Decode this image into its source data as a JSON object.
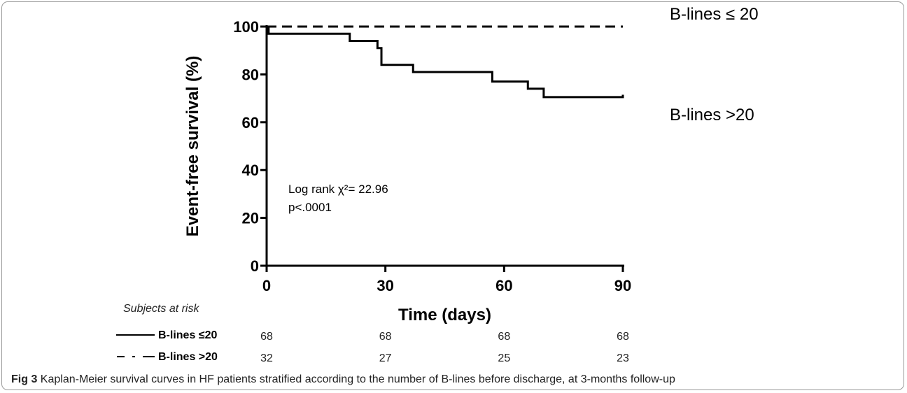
{
  "chart_data": {
    "type": "line",
    "subtype": "kaplan-meier",
    "xlabel": "Time (days)",
    "ylabel": "Event-free survival (%)",
    "xlim": [
      0,
      90
    ],
    "ylim": [
      0,
      100
    ],
    "xticks": [
      0,
      30,
      60,
      90
    ],
    "yticks": [
      0,
      20,
      40,
      60,
      80,
      100
    ],
    "grid": false,
    "series": [
      {
        "name": "B-lines ≤ 20",
        "style": "dashed",
        "x": [
          0,
          90
        ],
        "y": [
          100,
          100
        ]
      },
      {
        "name": "B-lines >20",
        "style": "solid",
        "x": [
          0,
          0.5,
          21,
          28,
          29,
          37,
          57,
          66,
          70,
          90
        ],
        "y": [
          100,
          97,
          94,
          91,
          84,
          81,
          77,
          74,
          70.5,
          71.5
        ]
      }
    ],
    "annotation": {
      "line1": "Log rank χ²= 22.96",
      "line2": "p<.0001"
    },
    "at_risk": {
      "title": "Subjects at risk",
      "times": [
        0,
        30,
        60,
        90
      ],
      "rows": [
        {
          "label": "B-lines ≤20",
          "counts": [
            "68",
            "68",
            "68",
            "68"
          ]
        },
        {
          "label": "B-lines >20",
          "counts": [
            "32",
            "27",
            "25",
            "23"
          ]
        }
      ]
    }
  },
  "caption": {
    "label": "Fig 3",
    "text": " Kaplan-Meier survival curves in HF patients stratified according to the number of B-lines before discharge, at 3-months follow-up"
  }
}
